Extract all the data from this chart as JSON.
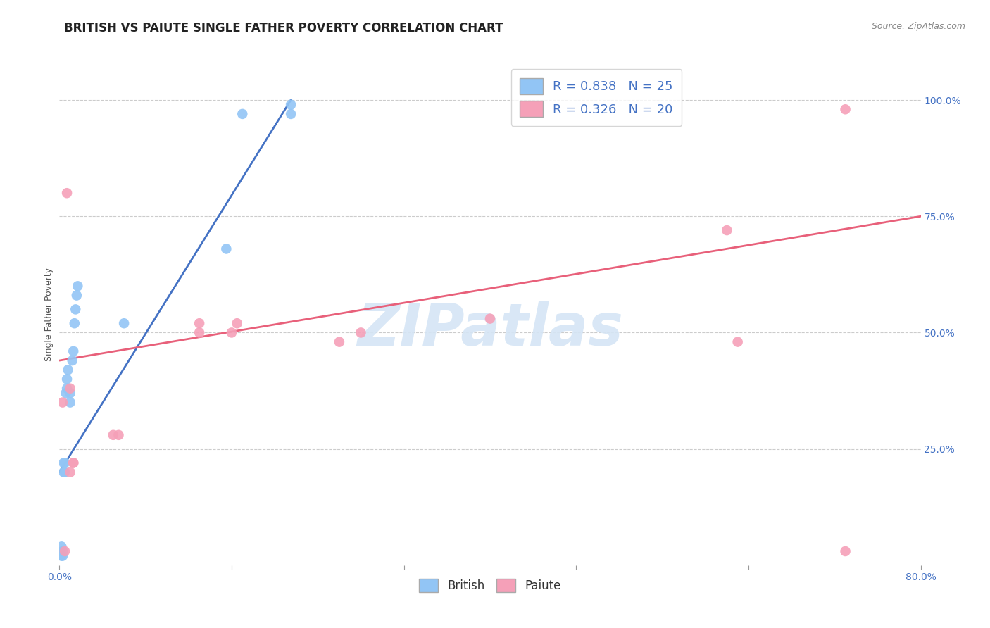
{
  "title": "BRITISH VS PAIUTE SINGLE FATHER POVERTY CORRELATION CHART",
  "source": "Source: ZipAtlas.com",
  "ylabel": "Single Father Poverty",
  "xlim": [
    0.0,
    0.8
  ],
  "ylim": [
    0.0,
    1.08
  ],
  "xticks": [
    0.0,
    0.16,
    0.32,
    0.48,
    0.64,
    0.8
  ],
  "xticklabels": [
    "0.0%",
    "",
    "",
    "",
    "",
    "80.0%"
  ],
  "yticks": [
    0.0,
    0.25,
    0.5,
    0.75,
    1.0
  ],
  "yticklabels": [
    "",
    "25.0%",
    "50.0%",
    "75.0%",
    "100.0%"
  ],
  "british_R": 0.838,
  "british_N": 25,
  "paiute_R": 0.326,
  "paiute_N": 20,
  "british_color": "#92C5F5",
  "paiute_color": "#F5A0B8",
  "british_line_color": "#4472C4",
  "paiute_line_color": "#E8607A",
  "legend_color": "#4472C4",
  "watermark_color": "#D5E5F5",
  "british_x": [
    0.002,
    0.002,
    0.003,
    0.003,
    0.004,
    0.004,
    0.005,
    0.005,
    0.006,
    0.007,
    0.007,
    0.008,
    0.01,
    0.01,
    0.012,
    0.013,
    0.014,
    0.015,
    0.016,
    0.017,
    0.06,
    0.155,
    0.17,
    0.215,
    0.215
  ],
  "british_y": [
    0.02,
    0.04,
    0.02,
    0.03,
    0.2,
    0.22,
    0.2,
    0.22,
    0.37,
    0.38,
    0.4,
    0.42,
    0.35,
    0.37,
    0.44,
    0.46,
    0.52,
    0.55,
    0.58,
    0.6,
    0.52,
    0.68,
    0.97,
    0.97,
    0.99
  ],
  "paiute_x": [
    0.003,
    0.005,
    0.007,
    0.01,
    0.01,
    0.013,
    0.013,
    0.05,
    0.055,
    0.13,
    0.13,
    0.16,
    0.165,
    0.26,
    0.28,
    0.4,
    0.62,
    0.63,
    0.73,
    0.73
  ],
  "paiute_y": [
    0.35,
    0.03,
    0.8,
    0.2,
    0.38,
    0.22,
    0.22,
    0.28,
    0.28,
    0.5,
    0.52,
    0.5,
    0.52,
    0.48,
    0.5,
    0.53,
    0.72,
    0.48,
    0.98,
    0.03
  ],
  "blue_line_x": [
    0.0,
    0.215
  ],
  "blue_line_y": [
    0.2,
    1.0
  ],
  "pink_line_x": [
    0.0,
    0.8
  ],
  "pink_line_y": [
    0.44,
    0.75
  ],
  "title_fontsize": 12,
  "axis_label_fontsize": 9,
  "tick_fontsize": 10,
  "legend_fontsize": 13,
  "source_fontsize": 9
}
